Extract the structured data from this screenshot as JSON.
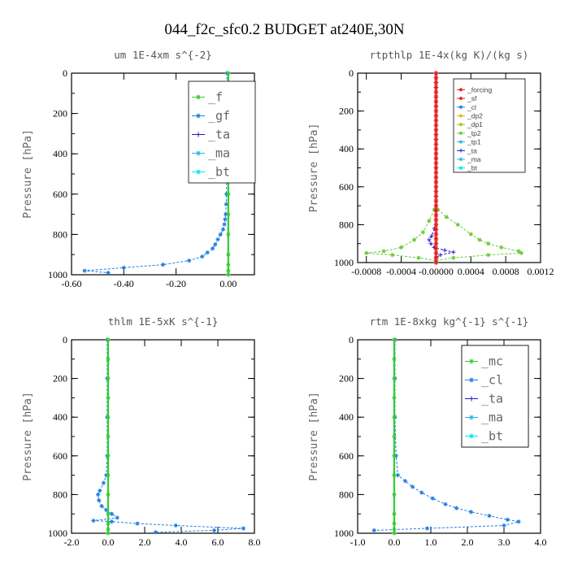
{
  "figure_title": "044_f2c_sfc0.2  BUDGET at240E,30N",
  "colors": {
    "green": "#33cc33",
    "blue": "#1f7fe6",
    "navy": "#1a1acc",
    "cyan": "#22b8e8",
    "aqua": "#00e6e6",
    "red": "#e61a1a",
    "orange": "#f2b311",
    "olive": "#99cc00",
    "lime": "#66cc33"
  },
  "chart_data": [
    {
      "type": "line",
      "title": "um  1E-4xm s^{-2}",
      "ylabel": "Pressure [hPa]",
      "xlim": [
        -0.6,
        0.1
      ],
      "ylim": [
        1000,
        0
      ],
      "xticks": [
        -0.6,
        -0.4,
        -0.2,
        0.0
      ],
      "xtick_labels": [
        "-0.60",
        "-0.40",
        "-0.20",
        "0.00"
      ],
      "yticks": [
        0,
        200,
        400,
        600,
        800,
        1000
      ],
      "legend_style": "big",
      "legend": [
        "_f",
        "_gf",
        "_ta",
        "_ma",
        "_bt"
      ],
      "series": [
        {
          "name": "_gf",
          "color": "blue",
          "marker": "star",
          "y": [
            0,
            100,
            200,
            300,
            400,
            500,
            600,
            650,
            700,
            725,
            750,
            775,
            800,
            825,
            850,
            870,
            890,
            910,
            930,
            950,
            965,
            980,
            990
          ],
          "x": [
            -0.005,
            -0.005,
            -0.005,
            -0.005,
            -0.005,
            -0.006,
            -0.007,
            -0.008,
            -0.01,
            -0.012,
            -0.015,
            -0.02,
            -0.03,
            -0.04,
            -0.05,
            -0.06,
            -0.08,
            -0.1,
            -0.15,
            -0.25,
            -0.4,
            -0.55,
            -0.46
          ]
        },
        {
          "name": "_f",
          "color": "green",
          "marker": "star",
          "y": [
            0,
            100,
            200,
            300,
            400,
            500,
            600,
            700,
            800,
            900,
            950,
            980,
            1000
          ],
          "x": [
            0,
            0,
            0,
            0,
            0,
            0,
            0,
            0,
            0,
            0,
            0,
            0,
            0
          ]
        }
      ]
    },
    {
      "type": "line",
      "title": "rtpthlp  1E-4x(kg K)/(kg s)",
      "ylabel": "Pressure [hPa]",
      "xlim": [
        -0.0009,
        0.0012
      ],
      "ylim": [
        1000,
        0
      ],
      "xticks": [
        -0.0008,
        -0.0004,
        0.0,
        0.0004,
        0.0008,
        0.0012
      ],
      "xtick_labels": [
        "-0.0008",
        "-0.0004",
        "-0.00000",
        "0.0004",
        "0.0008",
        "0.0012"
      ],
      "yticks": [
        0,
        200,
        400,
        600,
        800,
        1000
      ],
      "legend_style": "small",
      "legend": [
        "_forcing",
        "_sf",
        "_cl",
        "_dp2",
        "_dp1",
        "_tp2",
        "_tp1",
        "_ta",
        "_ma",
        "_bt"
      ],
      "series": [
        {
          "name": "_tp2",
          "color": "lime",
          "marker": "star",
          "y": [
            720,
            760,
            800,
            850,
            880,
            900,
            920,
            940,
            950,
            960,
            975,
            990
          ],
          "x": [
            2e-05,
            0.00012,
            0.00025,
            0.0004,
            0.0005,
            0.0006,
            0.00075,
            0.00095,
            0.00098,
            0.0006,
            0.0002,
            0.0
          ]
        },
        {
          "name": "_dp1",
          "color": "lime",
          "marker": "star",
          "y": [
            720,
            780,
            840,
            880,
            920,
            940,
            950,
            960,
            975,
            990
          ],
          "x": [
            -2e-05,
            -8e-05,
            -0.00015,
            -0.00025,
            -0.0004,
            -0.0006,
            -0.0008,
            -0.0005,
            -0.0002,
            0.0
          ]
        },
        {
          "name": "_ta",
          "color": "navy",
          "marker": "plus",
          "y": [
            820,
            860,
            880,
            900,
            920,
            935,
            945,
            960,
            975
          ],
          "x": [
            -2e-05,
            -5e-05,
            -8e-05,
            -6e-05,
            -2e-05,
            0.0001,
            0.0002,
            5e-05,
            0.0
          ]
        },
        {
          "name": "_forcing",
          "color": "red",
          "marker": "star",
          "y": [
            0,
            25,
            50,
            75,
            100,
            125,
            150,
            175,
            200,
            225,
            250,
            275,
            300,
            325,
            350,
            375,
            400,
            425,
            450,
            475,
            500,
            525,
            550,
            575,
            600,
            625,
            650,
            675,
            700,
            725,
            750,
            775,
            800,
            825,
            850,
            875,
            900,
            925,
            950,
            975,
            1000
          ],
          "x": [
            0,
            0,
            0,
            0,
            0,
            0,
            0,
            0,
            0,
            0,
            0,
            0,
            0,
            0,
            0,
            0,
            0,
            0,
            0,
            0,
            0,
            0,
            0,
            0,
            0,
            0,
            0,
            0,
            0,
            0,
            0,
            0,
            0,
            0,
            0,
            0,
            0,
            0,
            0,
            0,
            0
          ]
        }
      ]
    },
    {
      "type": "line",
      "title": "thlm  1E-5xK s^{-1}",
      "ylabel": "Pressure [hPa]",
      "xlim": [
        -2.0,
        8.0
      ],
      "ylim": [
        1000,
        0
      ],
      "xticks": [
        -2.0,
        0.0,
        2.0,
        4.0,
        6.0,
        8.0
      ],
      "xtick_labels": [
        "-2.0",
        "0.0",
        "2.0",
        "4.0",
        "6.0",
        "8.0"
      ],
      "yticks": [
        0,
        200,
        400,
        600,
        800,
        1000
      ],
      "legend_style": "big",
      "legend": [
        "_mc",
        "_cl",
        "_ta",
        "_ma",
        "_bt"
      ],
      "series": [
        {
          "name": "_cl",
          "color": "blue",
          "marker": "star",
          "y": [
            0,
            200,
            400,
            600,
            700,
            740,
            780,
            800,
            830,
            860,
            880,
            900,
            920,
            935,
            940,
            950,
            960,
            975,
            985,
            995
          ],
          "x": [
            -0.05,
            -0.05,
            -0.05,
            -0.05,
            -0.1,
            -0.25,
            -0.45,
            -0.55,
            -0.5,
            -0.35,
            -0.1,
            0.2,
            0.5,
            -0.8,
            0.2,
            1.6,
            3.7,
            7.4,
            5.8,
            2.6
          ]
        },
        {
          "name": "_mc",
          "color": "green",
          "marker": "star",
          "y": [
            0,
            100,
            200,
            300,
            400,
            500,
            600,
            700,
            800,
            900,
            950,
            980,
            1000
          ],
          "x": [
            0,
            0,
            0,
            0,
            0,
            0,
            0,
            0,
            0,
            0,
            0,
            0,
            0
          ]
        }
      ]
    },
    {
      "type": "line",
      "title": "rtm  1E-8xkg kg^{-1} s^{-1}",
      "ylabel": "Pressure [hPa]",
      "xlim": [
        -1.0,
        4.0
      ],
      "ylim": [
        1000,
        0
      ],
      "xticks": [
        -1.0,
        0.0,
        1.0,
        2.0,
        3.0,
        4.0
      ],
      "xtick_labels": [
        "-1.0",
        "0.0",
        "1.0",
        "2.0",
        "3.0",
        "4.0"
      ],
      "yticks": [
        0,
        200,
        400,
        600,
        800,
        1000
      ],
      "legend_style": "big",
      "legend": [
        "_mc",
        "_cl",
        "_ta",
        "_ma",
        "_bt"
      ],
      "series": [
        {
          "name": "_cl",
          "color": "blue",
          "marker": "star",
          "y": [
            0,
            200,
            400,
            600,
            700,
            730,
            760,
            790,
            820,
            850,
            870,
            890,
            910,
            930,
            940,
            960,
            975,
            985
          ],
          "x": [
            0.02,
            0.02,
            0.02,
            0.05,
            0.1,
            0.3,
            0.5,
            0.75,
            1.05,
            1.4,
            1.7,
            2.1,
            2.6,
            3.1,
            3.4,
            3.0,
            0.9,
            -0.55
          ]
        },
        {
          "name": "_mc",
          "color": "green",
          "marker": "star",
          "y": [
            0,
            100,
            200,
            300,
            400,
            500,
            600,
            700,
            800,
            900,
            950,
            980,
            1000
          ],
          "x": [
            0,
            0,
            0,
            0,
            0,
            0,
            0,
            0,
            0,
            0,
            0,
            0,
            0
          ]
        }
      ]
    }
  ]
}
